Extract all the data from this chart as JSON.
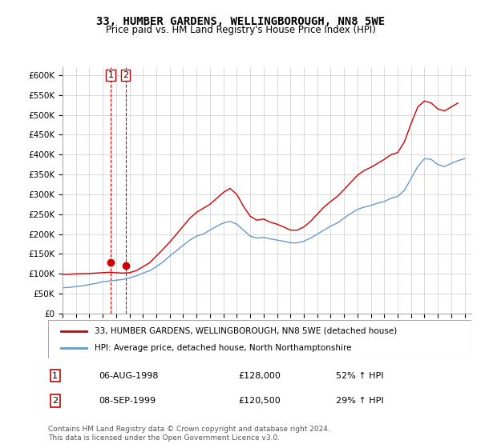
{
  "title_line1": "33, HUMBER GARDENS, WELLINGBOROUGH, NN8 5WE",
  "title_line2": "Price paid vs. HM Land Registry's House Price Index (HPI)",
  "legend_label1": "33, HUMBER GARDENS, WELLINGBOROUGH, NN8 5WE (detached house)",
  "legend_label2": "HPI: Average price, detached house, North Northamptonshire",
  "footnote": "Contains HM Land Registry data © Crown copyright and database right 2024.\nThis data is licensed under the Open Government Licence v3.0.",
  "sale1_label": "1",
  "sale1_date": "06-AUG-1998",
  "sale1_price": "£128,000",
  "sale1_hpi": "52% ↑ HPI",
  "sale2_label": "2",
  "sale2_date": "08-SEP-1999",
  "sale2_price": "£120,500",
  "sale2_hpi": "29% ↑ HPI",
  "sale1_year": 1998.6,
  "sale1_value": 128000,
  "sale2_year": 1999.7,
  "sale2_value": 120500,
  "red_color": "#cc0000",
  "blue_color": "#6699cc",
  "marker_dashed_color": "#cc0000",
  "ylim_min": 0,
  "ylim_max": 620000,
  "yticks": [
    0,
    50000,
    100000,
    150000,
    200000,
    250000,
    300000,
    350000,
    400000,
    450000,
    500000,
    550000,
    600000
  ],
  "xlim_min": 1995.0,
  "xlim_max": 2025.5,
  "background_color": "#ffffff",
  "grid_color": "#cccccc"
}
